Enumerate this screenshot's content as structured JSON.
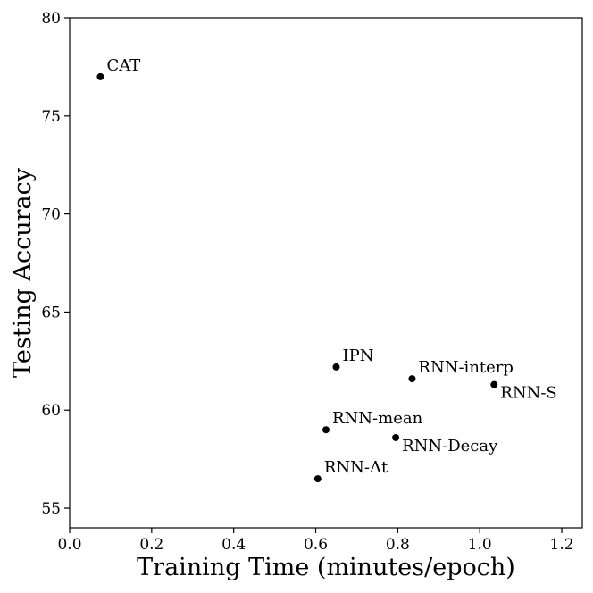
{
  "chart_data": {
    "type": "scatter",
    "title": "",
    "xlabel": "Training Time (minutes/epoch)",
    "ylabel": "Testing Accuracy",
    "xlim": [
      0.0,
      1.25
    ],
    "ylim": [
      54.0,
      80.0
    ],
    "xticks": [
      "0.0",
      "0.2",
      "0.4",
      "0.6",
      "0.8",
      "1.0",
      "1.2"
    ],
    "yticks": [
      "55",
      "60",
      "65",
      "70",
      "75",
      "80"
    ],
    "grid": false,
    "legend": "none",
    "marker_color": "#000000",
    "points": [
      {
        "label": "CAT",
        "x": 0.075,
        "y": 77.0,
        "label_side": "upper-right"
      },
      {
        "label": "IPN",
        "x": 0.65,
        "y": 62.2,
        "label_side": "upper-right"
      },
      {
        "label": "RNN-interp",
        "x": 0.835,
        "y": 61.6,
        "label_side": "upper-right"
      },
      {
        "label": "RNN-S",
        "x": 1.035,
        "y": 61.3,
        "label_side": "lower-right"
      },
      {
        "label": "RNN-mean",
        "x": 0.625,
        "y": 59.0,
        "label_side": "upper-right"
      },
      {
        "label": "RNN-Decay",
        "x": 0.795,
        "y": 58.6,
        "label_side": "lower-right"
      },
      {
        "label": "RNN-Δt",
        "x": 0.605,
        "y": 56.5,
        "label_side": "upper-right"
      }
    ]
  }
}
